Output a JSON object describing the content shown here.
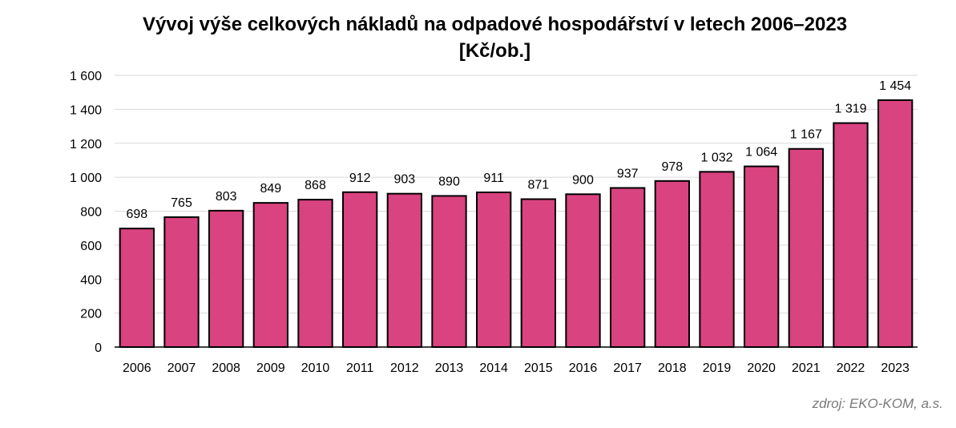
{
  "chart_data": {
    "type": "bar",
    "title": "Vývoj výše celkových nákladů na odpadové hospodářství v letech 2006–2023",
    "subtitle": "[Kč/ob.]",
    "categories": [
      "2006",
      "2007",
      "2008",
      "2009",
      "2010",
      "2011",
      "2012",
      "2013",
      "2014",
      "2015",
      "2016",
      "2017",
      "2018",
      "2019",
      "2020",
      "2021",
      "2022",
      "2023"
    ],
    "values": [
      698,
      765,
      803,
      849,
      868,
      912,
      903,
      890,
      911,
      871,
      900,
      937,
      978,
      1032,
      1064,
      1167,
      1319,
      1454
    ],
    "value_labels": [
      "698",
      "765",
      "803",
      "849",
      "868",
      "912",
      "903",
      "890",
      "911",
      "871",
      "900",
      "937",
      "978",
      "1 032",
      "1 064",
      "1 167",
      "1 319",
      "1 454"
    ],
    "ylim": [
      0,
      1600
    ],
    "yticks": [
      0,
      200,
      400,
      600,
      800,
      1000,
      1200,
      1400,
      1600
    ],
    "ytick_labels": [
      "0",
      "200",
      "400",
      "600",
      "800",
      "1 000",
      "1 200",
      "1 400",
      "1 600"
    ],
    "xlabel": "",
    "ylabel": "",
    "grid": true,
    "legend": "none",
    "bar_color": "#d9437f",
    "bar_edge_color": "#000000"
  },
  "source": "zdroj: EKO-KOM, a.s."
}
